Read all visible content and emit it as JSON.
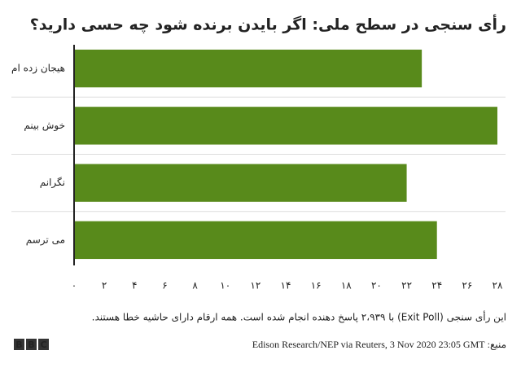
{
  "chart_data": {
    "type": "bar",
    "orientation": "horizontal",
    "title": "رأی سنجی در سطح ملی: اگر بایدن برنده شود چه حسی دارید؟",
    "categories": [
      "هیجان زده ام",
      "خوش بینم",
      "نگرانم",
      "می ترسم"
    ],
    "values": [
      23,
      28,
      22,
      24
    ],
    "color": "#588a1b",
    "xlim": [
      0,
      28
    ],
    "xticks": [
      {
        "value": 0,
        "label": "۰"
      },
      {
        "value": 2,
        "label": "۲"
      },
      {
        "value": 4,
        "label": "۴"
      },
      {
        "value": 6,
        "label": "۶"
      },
      {
        "value": 8,
        "label": "۸"
      },
      {
        "value": 10,
        "label": "۱۰"
      },
      {
        "value": 12,
        "label": "۱۲"
      },
      {
        "value": 14,
        "label": "۱۴"
      },
      {
        "value": 16,
        "label": "۱۶"
      },
      {
        "value": 18,
        "label": "۱۸"
      },
      {
        "value": 20,
        "label": "۲۰"
      },
      {
        "value": 22,
        "label": "۲۲"
      },
      {
        "value": 24,
        "label": "۲۴"
      },
      {
        "value": 26,
        "label": "۲۶"
      },
      {
        "value": 28,
        "label": "۲۸"
      }
    ],
    "grid": false,
    "note": "این رأی سنجی (Exit Poll) با ۲،۹۳۹ پاسخ دهنده انجام شده است. همه ارقام دارای حاشیه خطا هستند.",
    "source": "منبع: Edison Research/NEP via Reuters, 3 Nov 2020 23:05 GMT",
    "logo": [
      "B",
      "B",
      "C"
    ]
  }
}
